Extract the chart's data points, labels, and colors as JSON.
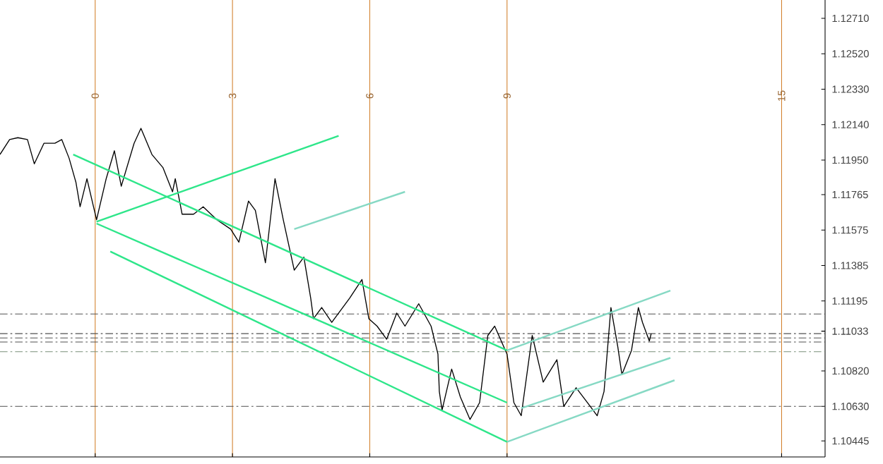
{
  "chart_data": {
    "type": "line",
    "x": [
      -2.08,
      -1.87,
      -1.69,
      -1.48,
      -1.33,
      -1.12,
      -0.88,
      -0.73,
      -0.57,
      -0.42,
      -0.33,
      -0.18,
      0.03,
      0.24,
      0.42,
      0.57,
      0.85,
      1.0,
      1.24,
      1.48,
      1.69,
      1.75,
      1.9,
      2.15,
      2.36,
      2.66,
      2.96,
      3.14,
      3.35,
      3.5,
      3.72,
      3.93,
      4.11,
      4.35,
      4.56,
      4.71,
      4.77,
      4.95,
      5.17,
      5.56,
      5.83,
      5.98,
      6.16,
      6.37,
      6.59,
      6.77,
      7.07,
      7.34,
      7.49,
      7.52,
      7.58,
      7.79,
      7.98,
      8.19,
      8.4,
      8.58,
      8.73,
      9.0,
      9.15,
      9.31,
      9.55,
      9.79,
      10.09,
      10.24,
      10.51,
      10.82,
      10.97,
      11.12,
      11.27,
      11.42,
      11.51,
      11.72,
      11.87,
      11.96,
      12.11,
      12.15
    ],
    "series": [
      {
        "color": "#000000",
        "values": [
          1.1198,
          1.1206,
          1.1207,
          1.1206,
          1.1193,
          1.1204,
          1.1204,
          1.1206,
          1.1196,
          1.1183,
          1.117,
          1.1185,
          1.1163,
          1.1185,
          1.12,
          1.1181,
          1.1204,
          1.1212,
          1.1198,
          1.1191,
          1.1178,
          1.1185,
          1.1166,
          1.1166,
          1.117,
          1.1163,
          1.1158,
          1.1151,
          1.1173,
          1.1168,
          1.114,
          1.1185,
          1.1163,
          1.1136,
          1.1143,
          1.1121,
          1.111,
          1.1116,
          1.1108,
          1.1121,
          1.1131,
          1.111,
          1.1106,
          1.1099,
          1.1113,
          1.1106,
          1.1118,
          1.1106,
          1.1091,
          1.1071,
          1.1061,
          1.1083,
          1.1068,
          1.1056,
          1.1065,
          1.1101,
          1.1106,
          1.1091,
          1.1065,
          1.1058,
          1.1101,
          1.1076,
          1.1088,
          1.1063,
          1.1073,
          1.1063,
          1.1058,
          1.1071,
          1.1116,
          1.1095,
          1.108,
          1.1093,
          1.1116,
          1.1108,
          1.1098,
          1.1102
        ]
      },
      {
        "color": "#2ee68a",
        "x": [
          -0.48,
          9.0
        ],
        "values": [
          1.1198,
          1.1093
        ]
      },
      {
        "color": "#2ee68a",
        "x": [
          0.03,
          9.0
        ],
        "values": [
          1.1161,
          1.1065
        ]
      },
      {
        "color": "#2ee68a",
        "x": [
          0.33,
          9.0
        ],
        "values": [
          1.1146,
          1.1044
        ]
      },
      {
        "color": "#2ee68a",
        "x": [
          0.03,
          5.32
        ],
        "values": [
          1.1162,
          1.1208
        ]
      },
      {
        "color": "#86d9c4",
        "x": [
          4.35,
          6.77
        ],
        "values": [
          1.1158,
          1.1178
        ]
      },
      {
        "color": "#86d9c4",
        "x": [
          9.0,
          12.57
        ],
        "values": [
          1.1093,
          1.1125
        ]
      },
      {
        "color": "#86d9c4",
        "x": [
          9.31,
          12.57
        ],
        "values": [
          1.1062,
          1.1089
        ]
      },
      {
        "color": "#86d9c4",
        "x": [
          9.0,
          12.66
        ],
        "values": [
          1.1044,
          1.1077
        ]
      }
    ],
    "xlim": [
      -2.08,
      15.95
    ],
    "xticks": [
      0,
      3,
      6,
      9,
      15
    ],
    "ylim": [
      1.10359,
      1.12808
    ],
    "yticks": [
      {
        "value": 1.1271,
        "label": "1.12710"
      },
      {
        "value": 1.1252,
        "label": "1.12520"
      },
      {
        "value": 1.1233,
        "label": "1.12330"
      },
      {
        "value": 1.1214,
        "label": "1.12140"
      },
      {
        "value": 1.1195,
        "label": "1.11950"
      },
      {
        "value": 1.11765,
        "label": "1.11765"
      },
      {
        "value": 1.11575,
        "label": "1.11575"
      },
      {
        "value": 1.11385,
        "label": "1.11385"
      },
      {
        "value": 1.11195,
        "label": "1.11195"
      },
      {
        "value": 1.11033,
        "label": "1.11033"
      },
      {
        "value": 1.1082,
        "label": "1.10820"
      },
      {
        "value": 1.1063,
        "label": "1.10630"
      },
      {
        "value": 1.10445,
        "label": "1.10445"
      }
    ],
    "grid": "x",
    "ref_lines": [
      {
        "axis": "y",
        "value": 1.11125,
        "color": "#505050",
        "line_style": "dashed"
      },
      {
        "axis": "y",
        "value": 1.1102,
        "color": "#505050",
        "line_style": "dashed"
      },
      {
        "axis": "y",
        "value": 1.10997,
        "color": "#505050",
        "line_style": "dashed"
      },
      {
        "axis": "y",
        "value": 1.10975,
        "color": "#505050",
        "line_style": "dashed"
      },
      {
        "axis": "y",
        "value": 1.10923,
        "color": "#7a907a",
        "line_style": "dashed"
      },
      {
        "axis": "y",
        "value": 1.1063,
        "color": "#505050",
        "line_style": "dashed"
      }
    ]
  }
}
